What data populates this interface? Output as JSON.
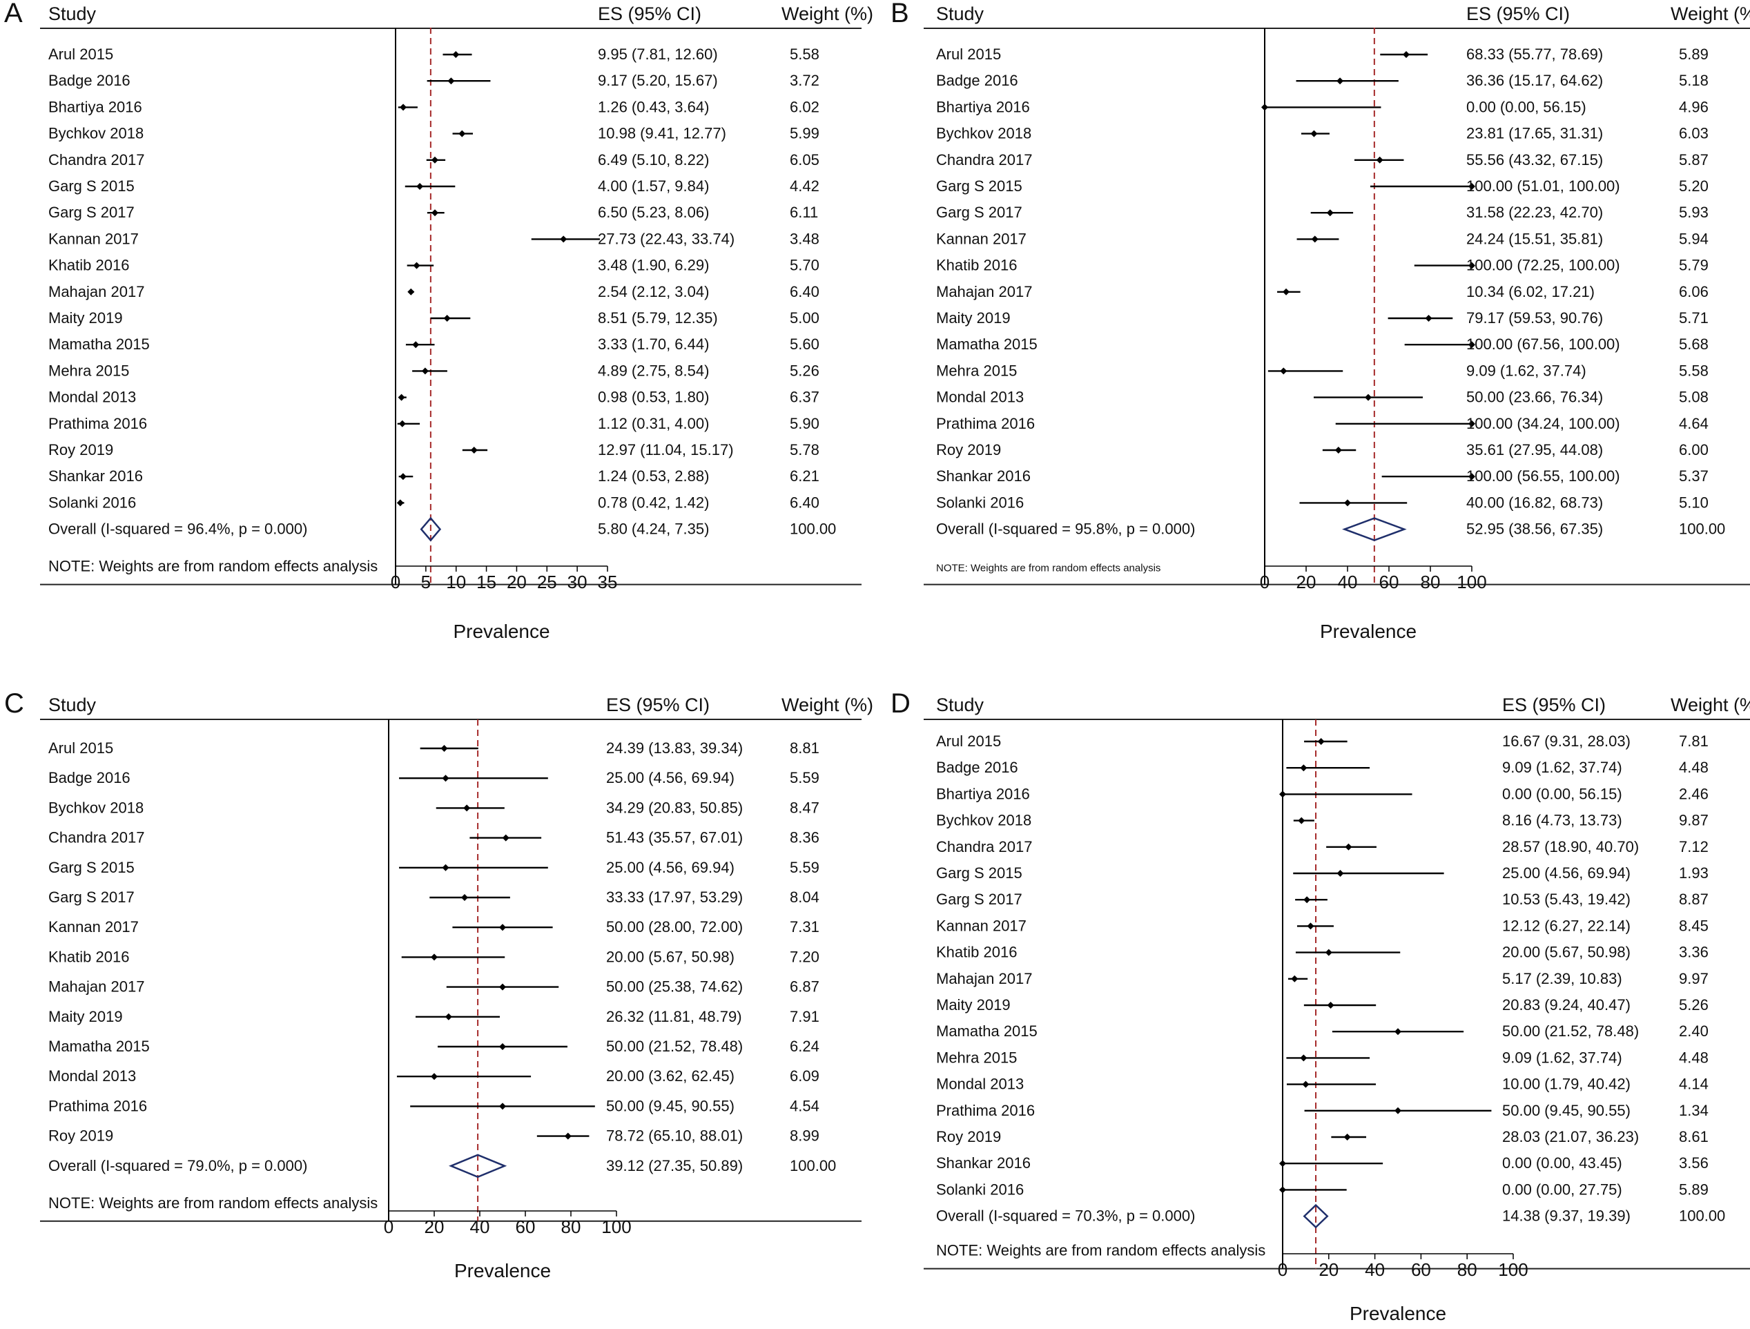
{
  "figure": {
    "panel_letters": [
      "A",
      "B",
      "C",
      "D"
    ]
  },
  "chart_data": [
    {
      "type": "forest",
      "panel": "A",
      "headers": {
        "study": "Study",
        "es": "ES (95% CI)",
        "weight": "Weight (%)"
      },
      "xlabel": "Prevalence",
      "xlim": [
        0,
        35
      ],
      "xticks": [
        0,
        5,
        10,
        15,
        20,
        25,
        30,
        35
      ],
      "reference_line": 5.8,
      "note": "NOTE: Weights are from random effects analysis",
      "studies": [
        {
          "name": "Arul 2015",
          "es": 9.95,
          "lo": 7.81,
          "hi": 12.6,
          "es_text": "9.95 (7.81, 12.60)",
          "weight": "5.58"
        },
        {
          "name": "Badge 2016",
          "es": 9.17,
          "lo": 5.2,
          "hi": 15.67,
          "es_text": "9.17 (5.20, 15.67)",
          "weight": "3.72"
        },
        {
          "name": "Bhartiya 2016",
          "es": 1.26,
          "lo": 0.43,
          "hi": 3.64,
          "es_text": "1.26 (0.43, 3.64)",
          "weight": "6.02"
        },
        {
          "name": "Bychkov 2018",
          "es": 10.98,
          "lo": 9.41,
          "hi": 12.77,
          "es_text": "10.98 (9.41, 12.77)",
          "weight": "5.99"
        },
        {
          "name": "Chandra 2017",
          "es": 6.49,
          "lo": 5.1,
          "hi": 8.22,
          "es_text": "6.49 (5.10, 8.22)",
          "weight": "6.05"
        },
        {
          "name": "Garg S 2015",
          "es": 4.0,
          "lo": 1.57,
          "hi": 9.84,
          "es_text": "4.00 (1.57, 9.84)",
          "weight": "4.42"
        },
        {
          "name": "Garg S 2017",
          "es": 6.5,
          "lo": 5.23,
          "hi": 8.06,
          "es_text": "6.50 (5.23, 8.06)",
          "weight": "6.11"
        },
        {
          "name": "Kannan 2017",
          "es": 27.73,
          "lo": 22.43,
          "hi": 33.74,
          "es_text": "27.73 (22.43, 33.74)",
          "weight": "3.48"
        },
        {
          "name": "Khatib 2016",
          "es": 3.48,
          "lo": 1.9,
          "hi": 6.29,
          "es_text": "3.48 (1.90, 6.29)",
          "weight": "5.70"
        },
        {
          "name": "Mahajan 2017",
          "es": 2.54,
          "lo": 2.12,
          "hi": 3.04,
          "es_text": "2.54 (2.12, 3.04)",
          "weight": "6.40"
        },
        {
          "name": "Maity 2019",
          "es": 8.51,
          "lo": 5.79,
          "hi": 12.35,
          "es_text": "8.51 (5.79, 12.35)",
          "weight": "5.00"
        },
        {
          "name": "Mamatha 2015",
          "es": 3.33,
          "lo": 1.7,
          "hi": 6.44,
          "es_text": "3.33 (1.70, 6.44)",
          "weight": "5.60"
        },
        {
          "name": "Mehra 2015",
          "es": 4.89,
          "lo": 2.75,
          "hi": 8.54,
          "es_text": "4.89 (2.75, 8.54)",
          "weight": "5.26"
        },
        {
          "name": "Mondal 2013",
          "es": 0.98,
          "lo": 0.53,
          "hi": 1.8,
          "es_text": "0.98 (0.53, 1.80)",
          "weight": "6.37"
        },
        {
          "name": "Prathima 2016",
          "es": 1.12,
          "lo": 0.31,
          "hi": 4.0,
          "es_text": "1.12 (0.31, 4.00)",
          "weight": "5.90"
        },
        {
          "name": "Roy 2019",
          "es": 12.97,
          "lo": 11.04,
          "hi": 15.17,
          "es_text": "12.97 (11.04, 15.17)",
          "weight": "5.78"
        },
        {
          "name": "Shankar 2016",
          "es": 1.24,
          "lo": 0.53,
          "hi": 2.88,
          "es_text": "1.24 (0.53, 2.88)",
          "weight": "6.21"
        },
        {
          "name": "Solanki 2016",
          "es": 0.78,
          "lo": 0.42,
          "hi": 1.42,
          "es_text": "0.78 (0.42, 1.42)",
          "weight": "6.40"
        }
      ],
      "overall": {
        "label": "Overall  (I-squared = 96.4%, p = 0.000)",
        "es": 5.8,
        "lo": 4.24,
        "hi": 7.35,
        "es_text": "5.80 (4.24, 7.35)",
        "weight": "100.00"
      }
    },
    {
      "type": "forest",
      "panel": "B",
      "headers": {
        "study": "Study",
        "es": "ES (95% CI)",
        "weight": "Weight (%)"
      },
      "xlabel": "Prevalence",
      "xlim": [
        0,
        100
      ],
      "xticks": [
        0,
        20,
        40,
        60,
        80,
        100
      ],
      "reference_line": 52.95,
      "note": "NOTE: Weights are from random effects analysis",
      "studies": [
        {
          "name": "Arul 2015",
          "es": 68.33,
          "lo": 55.77,
          "hi": 78.69,
          "es_text": "68.33 (55.77, 78.69)",
          "weight": "5.89"
        },
        {
          "name": "Badge 2016",
          "es": 36.36,
          "lo": 15.17,
          "hi": 64.62,
          "es_text": "36.36 (15.17, 64.62)",
          "weight": "5.18"
        },
        {
          "name": "Bhartiya 2016",
          "es": 0.0,
          "lo": 0.0,
          "hi": 56.15,
          "es_text": "0.00 (0.00, 56.15)",
          "weight": "4.96"
        },
        {
          "name": "Bychkov 2018",
          "es": 23.81,
          "lo": 17.65,
          "hi": 31.31,
          "es_text": "23.81 (17.65, 31.31)",
          "weight": "6.03"
        },
        {
          "name": "Chandra 2017",
          "es": 55.56,
          "lo": 43.32,
          "hi": 67.15,
          "es_text": "55.56 (43.32, 67.15)",
          "weight": "5.87"
        },
        {
          "name": "Garg S 2015",
          "es": 100.0,
          "lo": 51.01,
          "hi": 100.0,
          "es_text": "100.00 (51.01, 100.00)",
          "weight": "5.20"
        },
        {
          "name": "Garg S 2017",
          "es": 31.58,
          "lo": 22.23,
          "hi": 42.7,
          "es_text": "31.58 (22.23, 42.70)",
          "weight": "5.93"
        },
        {
          "name": "Kannan 2017",
          "es": 24.24,
          "lo": 15.51,
          "hi": 35.81,
          "es_text": "24.24 (15.51, 35.81)",
          "weight": "5.94"
        },
        {
          "name": "Khatib 2016",
          "es": 100.0,
          "lo": 72.25,
          "hi": 100.0,
          "es_text": "100.00 (72.25, 100.00)",
          "weight": "5.79"
        },
        {
          "name": "Mahajan 2017",
          "es": 10.34,
          "lo": 6.02,
          "hi": 17.21,
          "es_text": "10.34 (6.02, 17.21)",
          "weight": "6.06"
        },
        {
          "name": "Maity 2019",
          "es": 79.17,
          "lo": 59.53,
          "hi": 90.76,
          "es_text": "79.17 (59.53, 90.76)",
          "weight": "5.71"
        },
        {
          "name": "Mamatha 2015",
          "es": 100.0,
          "lo": 67.56,
          "hi": 100.0,
          "es_text": "100.00 (67.56, 100.00)",
          "weight": "5.68"
        },
        {
          "name": "Mehra 2015",
          "es": 9.09,
          "lo": 1.62,
          "hi": 37.74,
          "es_text": "9.09 (1.62, 37.74)",
          "weight": "5.58"
        },
        {
          "name": "Mondal 2013",
          "es": 50.0,
          "lo": 23.66,
          "hi": 76.34,
          "es_text": "50.00 (23.66, 76.34)",
          "weight": "5.08"
        },
        {
          "name": "Prathima 2016",
          "es": 100.0,
          "lo": 34.24,
          "hi": 100.0,
          "es_text": "100.00 (34.24, 100.00)",
          "weight": "4.64"
        },
        {
          "name": "Roy 2019",
          "es": 35.61,
          "lo": 27.95,
          "hi": 44.08,
          "es_text": "35.61 (27.95, 44.08)",
          "weight": "6.00"
        },
        {
          "name": "Shankar 2016",
          "es": 100.0,
          "lo": 56.55,
          "hi": 100.0,
          "es_text": "100.00 (56.55, 100.00)",
          "weight": "5.37"
        },
        {
          "name": "Solanki 2016",
          "es": 40.0,
          "lo": 16.82,
          "hi": 68.73,
          "es_text": "40.00 (16.82, 68.73)",
          "weight": "5.10"
        }
      ],
      "overall": {
        "label": "Overall  (I-squared = 95.8%, p = 0.000)",
        "es": 52.95,
        "lo": 38.56,
        "hi": 67.35,
        "es_text": "52.95 (38.56, 67.35)",
        "weight": "100.00"
      }
    },
    {
      "type": "forest",
      "panel": "C",
      "headers": {
        "study": "Study",
        "es": "ES (95% CI)",
        "weight": "Weight (%)"
      },
      "xlabel": "Prevalence",
      "xlim": [
        0,
        100
      ],
      "xticks": [
        0,
        20,
        40,
        60,
        80,
        100
      ],
      "reference_line": 39.12,
      "note": "NOTE: Weights are from random effects analysis",
      "studies": [
        {
          "name": "Arul 2015",
          "es": 24.39,
          "lo": 13.83,
          "hi": 39.34,
          "es_text": "24.39 (13.83, 39.34)",
          "weight": "8.81"
        },
        {
          "name": "Badge 2016",
          "es": 25.0,
          "lo": 4.56,
          "hi": 69.94,
          "es_text": "25.00 (4.56, 69.94)",
          "weight": "5.59"
        },
        {
          "name": "Bychkov 2018",
          "es": 34.29,
          "lo": 20.83,
          "hi": 50.85,
          "es_text": "34.29 (20.83, 50.85)",
          "weight": "8.47"
        },
        {
          "name": "Chandra 2017",
          "es": 51.43,
          "lo": 35.57,
          "hi": 67.01,
          "es_text": "51.43 (35.57, 67.01)",
          "weight": "8.36"
        },
        {
          "name": "Garg S 2015",
          "es": 25.0,
          "lo": 4.56,
          "hi": 69.94,
          "es_text": "25.00 (4.56, 69.94)",
          "weight": "5.59"
        },
        {
          "name": "Garg S 2017",
          "es": 33.33,
          "lo": 17.97,
          "hi": 53.29,
          "es_text": "33.33 (17.97, 53.29)",
          "weight": "8.04"
        },
        {
          "name": "Kannan 2017",
          "es": 50.0,
          "lo": 28.0,
          "hi": 72.0,
          "es_text": "50.00 (28.00, 72.00)",
          "weight": "7.31"
        },
        {
          "name": "Khatib 2016",
          "es": 20.0,
          "lo": 5.67,
          "hi": 50.98,
          "es_text": "20.00 (5.67, 50.98)",
          "weight": "7.20"
        },
        {
          "name": "Mahajan 2017",
          "es": 50.0,
          "lo": 25.38,
          "hi": 74.62,
          "es_text": "50.00 (25.38, 74.62)",
          "weight": "6.87"
        },
        {
          "name": "Maity 2019",
          "es": 26.32,
          "lo": 11.81,
          "hi": 48.79,
          "es_text": "26.32 (11.81, 48.79)",
          "weight": "7.91"
        },
        {
          "name": "Mamatha 2015",
          "es": 50.0,
          "lo": 21.52,
          "hi": 78.48,
          "es_text": "50.00 (21.52, 78.48)",
          "weight": "6.24"
        },
        {
          "name": "Mondal 2013",
          "es": 20.0,
          "lo": 3.62,
          "hi": 62.45,
          "es_text": "20.00 (3.62, 62.45)",
          "weight": "6.09"
        },
        {
          "name": "Prathima 2016",
          "es": 50.0,
          "lo": 9.45,
          "hi": 90.55,
          "es_text": "50.00 (9.45, 90.55)",
          "weight": "4.54"
        },
        {
          "name": "Roy 2019",
          "es": 78.72,
          "lo": 65.1,
          "hi": 88.01,
          "es_text": "78.72 (65.10, 88.01)",
          "weight": "8.99"
        }
      ],
      "overall": {
        "label": "Overall  (I-squared = 79.0%, p = 0.000)",
        "es": 39.12,
        "lo": 27.35,
        "hi": 50.89,
        "es_text": "39.12 (27.35, 50.89)",
        "weight": "100.00"
      }
    },
    {
      "type": "forest",
      "panel": "D",
      "headers": {
        "study": "Study",
        "es": "ES (95% CI)",
        "weight": "Weight (%)"
      },
      "xlabel": "Prevalence",
      "xlim": [
        0,
        100
      ],
      "xticks": [
        0,
        20,
        40,
        60,
        80,
        100
      ],
      "reference_line": 14.38,
      "note": "NOTE: Weights are from random effects analysis",
      "studies": [
        {
          "name": "Arul 2015",
          "es": 16.67,
          "lo": 9.31,
          "hi": 28.03,
          "es_text": "16.67 (9.31, 28.03)",
          "weight": "7.81"
        },
        {
          "name": "Badge 2016",
          "es": 9.09,
          "lo": 1.62,
          "hi": 37.74,
          "es_text": "9.09 (1.62, 37.74)",
          "weight": "4.48"
        },
        {
          "name": "Bhartiya 2016",
          "es": 0.0,
          "lo": 0.0,
          "hi": 56.15,
          "es_text": "0.00 (0.00, 56.15)",
          "weight": "2.46"
        },
        {
          "name": "Bychkov 2018",
          "es": 8.16,
          "lo": 4.73,
          "hi": 13.73,
          "es_text": "8.16 (4.73, 13.73)",
          "weight": "9.87"
        },
        {
          "name": "Chandra 2017",
          "es": 28.57,
          "lo": 18.9,
          "hi": 40.7,
          "es_text": "28.57 (18.90, 40.70)",
          "weight": "7.12"
        },
        {
          "name": "Garg S 2015",
          "es": 25.0,
          "lo": 4.56,
          "hi": 69.94,
          "es_text": "25.00 (4.56, 69.94)",
          "weight": "1.93"
        },
        {
          "name": "Garg S 2017",
          "es": 10.53,
          "lo": 5.43,
          "hi": 19.42,
          "es_text": "10.53 (5.43, 19.42)",
          "weight": "8.87"
        },
        {
          "name": "Kannan 2017",
          "es": 12.12,
          "lo": 6.27,
          "hi": 22.14,
          "es_text": "12.12 (6.27, 22.14)",
          "weight": "8.45"
        },
        {
          "name": "Khatib 2016",
          "es": 20.0,
          "lo": 5.67,
          "hi": 50.98,
          "es_text": "20.00 (5.67, 50.98)",
          "weight": "3.36"
        },
        {
          "name": "Mahajan 2017",
          "es": 5.17,
          "lo": 2.39,
          "hi": 10.83,
          "es_text": "5.17 (2.39, 10.83)",
          "weight": "9.97"
        },
        {
          "name": "Maity 2019",
          "es": 20.83,
          "lo": 9.24,
          "hi": 40.47,
          "es_text": "20.83 (9.24, 40.47)",
          "weight": "5.26"
        },
        {
          "name": "Mamatha 2015",
          "es": 50.0,
          "lo": 21.52,
          "hi": 78.48,
          "es_text": "50.00 (21.52, 78.48)",
          "weight": "2.40"
        },
        {
          "name": "Mehra 2015",
          "es": 9.09,
          "lo": 1.62,
          "hi": 37.74,
          "es_text": "9.09 (1.62, 37.74)",
          "weight": "4.48"
        },
        {
          "name": "Mondal 2013",
          "es": 10.0,
          "lo": 1.79,
          "hi": 40.42,
          "es_text": "10.00 (1.79, 40.42)",
          "weight": "4.14"
        },
        {
          "name": "Prathima 2016",
          "es": 50.0,
          "lo": 9.45,
          "hi": 90.55,
          "es_text": "50.00 (9.45, 90.55)",
          "weight": "1.34"
        },
        {
          "name": "Roy 2019",
          "es": 28.03,
          "lo": 21.07,
          "hi": 36.23,
          "es_text": "28.03 (21.07, 36.23)",
          "weight": "8.61"
        },
        {
          "name": "Shankar 2016",
          "es": 0.0,
          "lo": 0.0,
          "hi": 43.45,
          "es_text": "0.00 (0.00, 43.45)",
          "weight": "3.56"
        },
        {
          "name": "Solanki 2016",
          "es": 0.0,
          "lo": 0.0,
          "hi": 27.75,
          "es_text": "0.00 (0.00, 27.75)",
          "weight": "5.89"
        }
      ],
      "overall": {
        "label": "Overall  (I-squared = 70.3%, p = 0.000)",
        "es": 14.38,
        "lo": 9.37,
        "hi": 19.39,
        "es_text": "14.38 (9.37, 19.39)",
        "weight": "100.00"
      }
    }
  ]
}
